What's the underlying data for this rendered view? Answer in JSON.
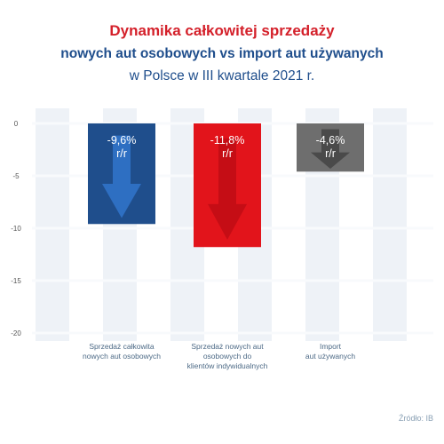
{
  "header": {
    "title": "Dynamika całkowitej sprzedaży",
    "subtitle": "nowych aut osobowych vs import aut używanych",
    "period": "w Polsce w III kwartale 2021 r."
  },
  "colors": {
    "title": "#d4202a",
    "subtitle": "#1f4e8c",
    "axis": "#555555",
    "category_label": "#4d6a86",
    "grid_stripe": "#eef2f7",
    "grid_line": "#f8fafc"
  },
  "chart_data": {
    "type": "bar",
    "categories": [
      [
        "Sprzedaż całkowita",
        "nowych aut osobowych"
      ],
      [
        "Sprzedaż nowych aut",
        "osobowych do",
        "klientów indywidualnych"
      ],
      [
        "Import",
        "aut używanych"
      ]
    ],
    "values": [
      -9.6,
      -11.8,
      -4.6
    ],
    "data_labels": [
      [
        "-9,6%",
        "r/r"
      ],
      [
        "-11,8%",
        "r/r"
      ],
      [
        "-4,6%",
        "r/r"
      ]
    ],
    "bar_colors": [
      "#1f4e8c",
      "#e2141b",
      "#6e6e6e"
    ],
    "arrow_colors": [
      "#2e6fc2",
      "#c50d15",
      "#4a4a4a"
    ],
    "ylim": [
      -20,
      0
    ],
    "yticks": [
      0,
      -5,
      -10,
      -15,
      -20
    ],
    "ytick_labels": [
      "0",
      "-5",
      "-10",
      "-15",
      "-20"
    ],
    "grid": true,
    "legend": "none"
  },
  "source": "Źródło: IB"
}
